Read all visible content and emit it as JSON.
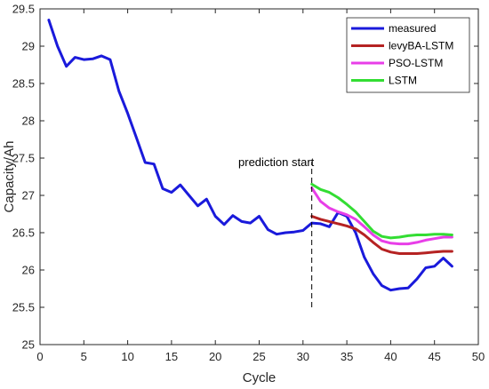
{
  "chart_data": {
    "type": "line",
    "xlabel": "Cycle",
    "ylabel": "Capacity/Ah",
    "xlim": [
      0,
      50
    ],
    "ylim": [
      25,
      29.5
    ],
    "xticks": [
      0,
      5,
      10,
      15,
      20,
      25,
      30,
      35,
      40,
      45,
      50
    ],
    "yticks": [
      25,
      25.5,
      26,
      26.5,
      27,
      27.5,
      28,
      28.5,
      29,
      29.5
    ],
    "grid": false,
    "legend_position": "top-right",
    "annotation": {
      "text": "prediction start",
      "x": 31,
      "y_range": [
        25.5,
        27.45
      ]
    },
    "series": [
      {
        "name": "measured",
        "color": "#1a1adb",
        "x": [
          1,
          2,
          3,
          4,
          5,
          6,
          7,
          8,
          9,
          10,
          11,
          12,
          13,
          14,
          15,
          16,
          17,
          18,
          19,
          20,
          21,
          22,
          23,
          24,
          25,
          26,
          27,
          28,
          29,
          30,
          31,
          32,
          33,
          34,
          35,
          36,
          37,
          38,
          39,
          40,
          41,
          42,
          43,
          44,
          45,
          46,
          47
        ],
        "y": [
          29.35,
          29.0,
          28.73,
          28.85,
          28.82,
          28.83,
          28.87,
          28.82,
          28.4,
          28.1,
          27.77,
          27.44,
          27.42,
          27.09,
          27.04,
          27.14,
          27.0,
          26.86,
          26.95,
          26.72,
          26.61,
          26.73,
          26.65,
          26.63,
          26.72,
          26.54,
          26.48,
          26.5,
          26.51,
          26.53,
          26.63,
          26.62,
          26.58,
          26.77,
          26.72,
          26.5,
          26.17,
          25.95,
          25.79,
          25.73,
          25.75,
          25.76,
          25.88,
          26.03,
          26.05,
          26.16,
          26.05
        ]
      },
      {
        "name": "levyBA-LSTM",
        "color": "#b52222",
        "x": [
          31,
          32,
          33,
          34,
          35,
          36,
          37,
          38,
          39,
          40,
          41,
          42,
          43,
          44,
          45,
          46,
          47
        ],
        "y": [
          26.72,
          26.68,
          26.65,
          26.62,
          26.59,
          26.55,
          26.47,
          26.37,
          26.28,
          26.24,
          26.22,
          26.22,
          26.22,
          26.23,
          26.24,
          26.25,
          26.25
        ]
      },
      {
        "name": "PSO-LSTM",
        "color": "#e83ee8",
        "x": [
          31,
          32,
          33,
          34,
          35,
          36,
          37,
          38,
          39,
          40,
          41,
          42,
          43,
          44,
          45,
          46,
          47
        ],
        "y": [
          27.1,
          26.92,
          26.83,
          26.78,
          26.74,
          26.68,
          26.58,
          26.47,
          26.39,
          26.36,
          26.35,
          26.35,
          26.37,
          26.4,
          26.42,
          26.44,
          26.44
        ]
      },
      {
        "name": "LSTM",
        "color": "#33dd33",
        "x": [
          31,
          32,
          33,
          34,
          35,
          36,
          37,
          38,
          39,
          40,
          41,
          42,
          43,
          44,
          45,
          46,
          47
        ],
        "y": [
          27.15,
          27.08,
          27.04,
          26.97,
          26.88,
          26.78,
          26.65,
          26.52,
          26.45,
          26.43,
          26.44,
          26.46,
          26.47,
          26.47,
          26.48,
          26.48,
          26.47
        ]
      }
    ]
  }
}
